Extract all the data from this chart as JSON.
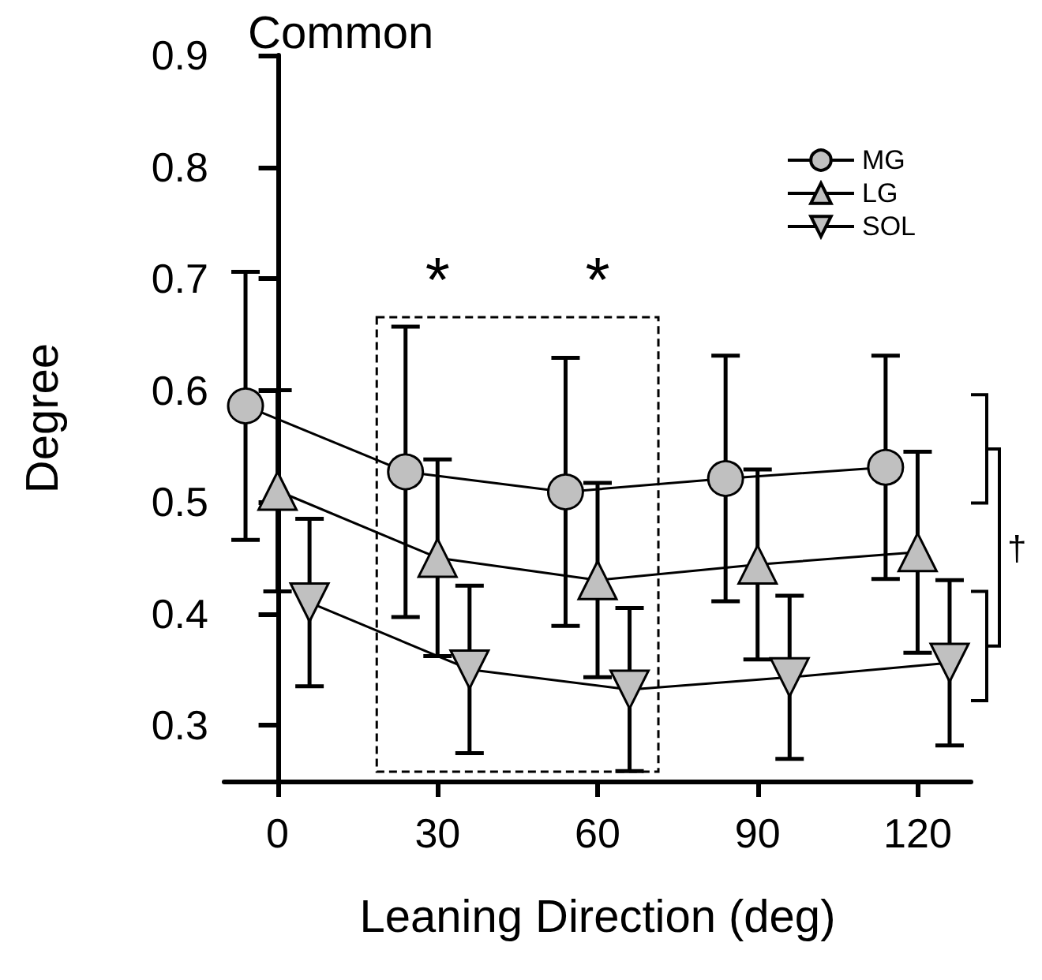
{
  "chart_data": {
    "type": "line",
    "title": "Common",
    "xlabel": "Leaning Direction (deg)",
    "ylabel": "Degree",
    "xlim": [
      -10,
      130
    ],
    "xticks": [
      0,
      30,
      60,
      90,
      120
    ],
    "ylim": [
      0.25,
      0.9
    ],
    "yticks": [
      0.3,
      0.4,
      0.5,
      0.6,
      0.7,
      0.8,
      0.9
    ],
    "grid": false,
    "legend": "top right",
    "series": [
      {
        "name": "MG",
        "color": "#c0c0c0",
        "marker": "circle",
        "x": [
          -6,
          24,
          54,
          84,
          114
        ],
        "values": [
          0.586,
          0.527,
          0.509,
          0.521,
          0.531
        ],
        "errors": [
          0.12,
          0.13,
          0.12,
          0.11,
          0.1
        ]
      },
      {
        "name": "LG",
        "color": "#c0c0c0",
        "marker": "triangle",
        "x": [
          0,
          30,
          60,
          90,
          120
        ],
        "values": [
          0.51,
          0.45,
          0.43,
          0.444,
          0.455
        ],
        "errors": [
          0.09,
          0.088,
          0.087,
          0.085,
          0.09
        ]
      },
      {
        "name": "SOL",
        "color": "#c0c0c0",
        "marker": "triangle-down",
        "x": [
          6,
          36,
          66,
          96,
          126
        ],
        "values": [
          0.41,
          0.35,
          0.332,
          0.343,
          0.356
        ],
        "errors": [
          0.075,
          0.075,
          0.073,
          0.073,
          0.074
        ]
      }
    ],
    "annotations": [
      "*",
      "*",
      "†"
    ]
  }
}
